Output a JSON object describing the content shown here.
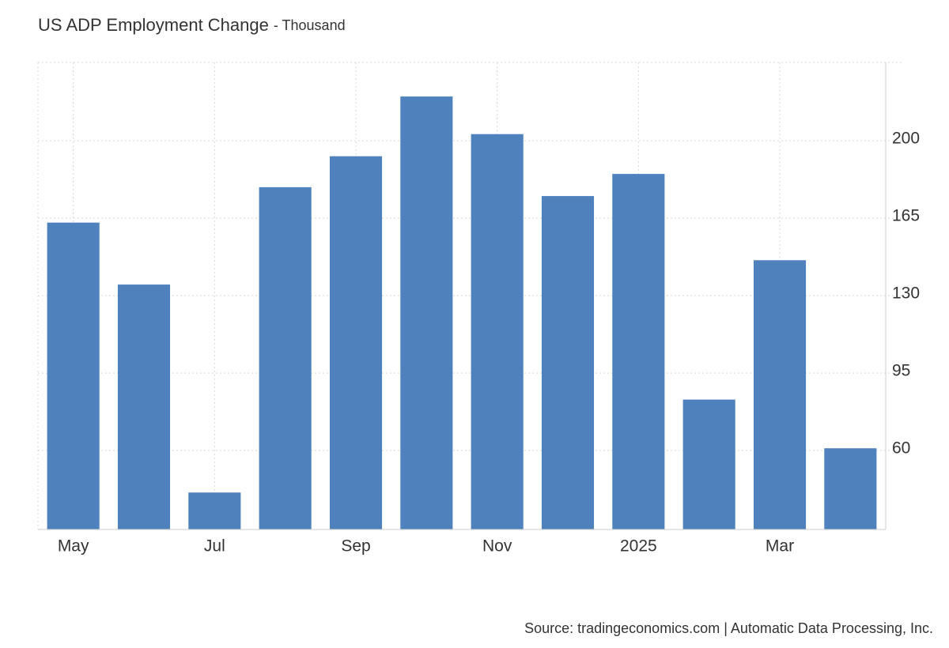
{
  "chart_data": {
    "type": "bar",
    "title": "US ADP Employment Change",
    "subtitle": "- Thousand",
    "categories": [
      "May",
      null,
      "Jul",
      null,
      "Sep",
      null,
      "Nov",
      null,
      "2025",
      null,
      "Mar",
      null
    ],
    "values": [
      163,
      135,
      41,
      179,
      193,
      220,
      203,
      175,
      185,
      83,
      146,
      61
    ],
    "color": "#4f81bd",
    "ylim": [
      24.3,
      235.4
    ],
    "yticks": [
      60,
      95,
      130,
      165,
      200
    ],
    "grid": true,
    "source": "Source: tradingeconomics.com | Automatic Data Processing, Inc."
  }
}
